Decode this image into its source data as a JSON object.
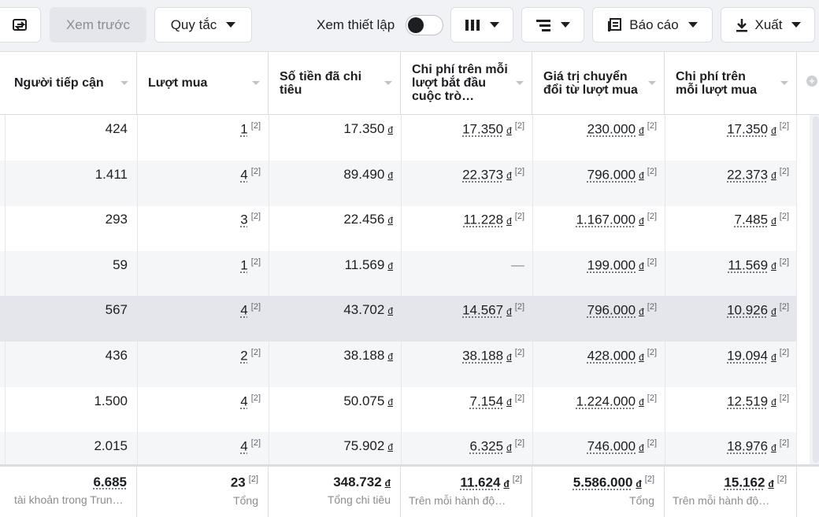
{
  "toolbar": {
    "preview_label": "Xem trước",
    "rules_label": "Quy tắc",
    "setting_label": "Xem thiết lập",
    "report_label": "Báo cáo",
    "export_label": "Xuất"
  },
  "icons": {
    "share": "share-icon",
    "columns": "columns-icon",
    "breakdown": "breakdown-icon",
    "report": "report-icon",
    "export": "download-icon",
    "add_column": "add-column-icon"
  },
  "columns": [
    {
      "label": "Người tiếp cận"
    },
    {
      "label": "Lượt mua"
    },
    {
      "label": "Số tiền đã chi tiêu"
    },
    {
      "label": "Chi phí trên mỗi lượt bắt đầu cuộc trò…"
    },
    {
      "label": "Giá trị chuyển đổi từ lượt mua"
    },
    {
      "label": "Chi phí trên mỗi lượt mua"
    }
  ],
  "rows": [
    {
      "reach": "424",
      "purchases": "1",
      "spent": "17.350",
      "cost_conv": "17.350",
      "conv_value": "230.000",
      "cost_purchase": "17.350"
    },
    {
      "reach": "1.411",
      "purchases": "4",
      "spent": "89.490",
      "cost_conv": "22.373",
      "conv_value": "796.000",
      "cost_purchase": "22.373"
    },
    {
      "reach": "293",
      "purchases": "3",
      "spent": "22.456",
      "cost_conv": "11.228",
      "conv_value": "1.167.000",
      "cost_purchase": "7.485"
    },
    {
      "reach": "59",
      "purchases": "1",
      "spent": "11.569",
      "cost_conv": "—",
      "conv_value": "199.000",
      "cost_purchase": "11.569"
    },
    {
      "reach": "567",
      "purchases": "4",
      "spent": "43.702",
      "cost_conv": "14.567",
      "conv_value": "796.000",
      "cost_purchase": "10.926"
    },
    {
      "reach": "436",
      "purchases": "2",
      "spent": "38.188",
      "cost_conv": "38.188",
      "conv_value": "428.000",
      "cost_purchase": "19.094"
    },
    {
      "reach": "1.500",
      "purchases": "4",
      "spent": "50.075",
      "cost_conv": "7.154",
      "conv_value": "1.224.000",
      "cost_purchase": "12.519"
    },
    {
      "reach": "2.015",
      "purchases": "4",
      "spent": "75.902",
      "cost_conv": "6.325",
      "conv_value": "746.000",
      "cost_purchase": "18.976"
    }
  ],
  "currency": "đ",
  "note_marker": "[2]",
  "footer": {
    "reach": {
      "value": "6.685",
      "sub": "tài khoản trong Trun…"
    },
    "purchases": {
      "value": "23",
      "sub": "Tổng"
    },
    "spent": {
      "value": "348.732",
      "sub": "Tổng chi tiêu"
    },
    "cost_conv": {
      "value": "11.624",
      "sub": "Trên mỗi hành độ…"
    },
    "conv_value": {
      "value": "5.586.000",
      "sub": "Tổng"
    },
    "cost_purchase": {
      "value": "15.162",
      "sub": "Trên mỗi hành độ…"
    }
  },
  "colors": {
    "toolbar_bg": "#f0f2f5",
    "row_alt": "#f5f6f7",
    "row_selected": "#e4e6eb",
    "border": "#dadde1"
  }
}
